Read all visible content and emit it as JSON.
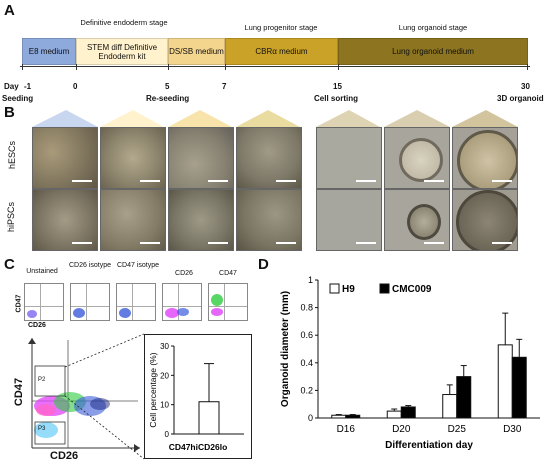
{
  "panels": {
    "a": "A",
    "b": "B",
    "c": "C",
    "d": "D"
  },
  "timeline": {
    "stages": {
      "definitive_endoderm": "Definitive endoderm stage",
      "lung_progenitor": "Lung progenitor stage",
      "lung_organoid": "Lung organoid stage"
    },
    "segments": [
      {
        "label": "E8 medium",
        "color": "#8ea9db"
      },
      {
        "label": "STEM diff Definitive Endoderm kit",
        "color": "#fff2cc"
      },
      {
        "label": "DS/SB medium",
        "color": "#f4d58d"
      },
      {
        "label": "CBRα medium",
        "color": "#c9a227"
      },
      {
        "label": "Lung organoid medium",
        "color": "#8c7420"
      }
    ],
    "days": {
      "day": "Day",
      "m1": "-1",
      "d0": "0",
      "d5": "5",
      "d7": "7",
      "d15": "15",
      "d30": "30"
    },
    "events": {
      "seeding": "Seeding",
      "reseeding": "Re-seeding",
      "cell_sorting": "Cell sorting",
      "organoid": "3D organoid"
    }
  },
  "microscopy": {
    "row1_label": "hESCs",
    "row2_label": "hiPSCs"
  },
  "flow": {
    "mini_titles": [
      "Unstained",
      "CD26 isotype",
      "CD47 isotype",
      "CD26",
      "CD47"
    ],
    "mini_y": "CD47",
    "mini_x": "CD26",
    "big_y": "CD47",
    "big_x": "CD26",
    "gates": {
      "p2": "P2",
      "p3": "P3"
    }
  },
  "chart_data": [
    {
      "type": "bar",
      "categories": [
        "CD47hiCD26lo"
      ],
      "values": [
        11
      ],
      "errors": [
        13
      ],
      "ylabel": "Cell percentage (%)",
      "ylim": [
        0,
        30
      ],
      "yticks": [
        0,
        10,
        20,
        30
      ]
    },
    {
      "type": "bar",
      "categories": [
        "D16",
        "D20",
        "D25",
        "D30"
      ],
      "series": [
        {
          "name": "H9",
          "values": [
            0.02,
            0.05,
            0.17,
            0.53
          ],
          "errors": [
            0.005,
            0.015,
            0.07,
            0.23
          ],
          "color": "#ffffff"
        },
        {
          "name": "CMC009",
          "values": [
            0.02,
            0.08,
            0.3,
            0.44
          ],
          "errors": [
            0.005,
            0.01,
            0.08,
            0.13
          ],
          "color": "#000000"
        }
      ],
      "xlabel": "Differentiation day",
      "ylabel": "Organoid diameter (mm)",
      "ylim": [
        0,
        1
      ],
      "yticks": [
        "0",
        "0.2",
        "0.4",
        "0.6",
        "0.8",
        "1"
      ]
    }
  ]
}
